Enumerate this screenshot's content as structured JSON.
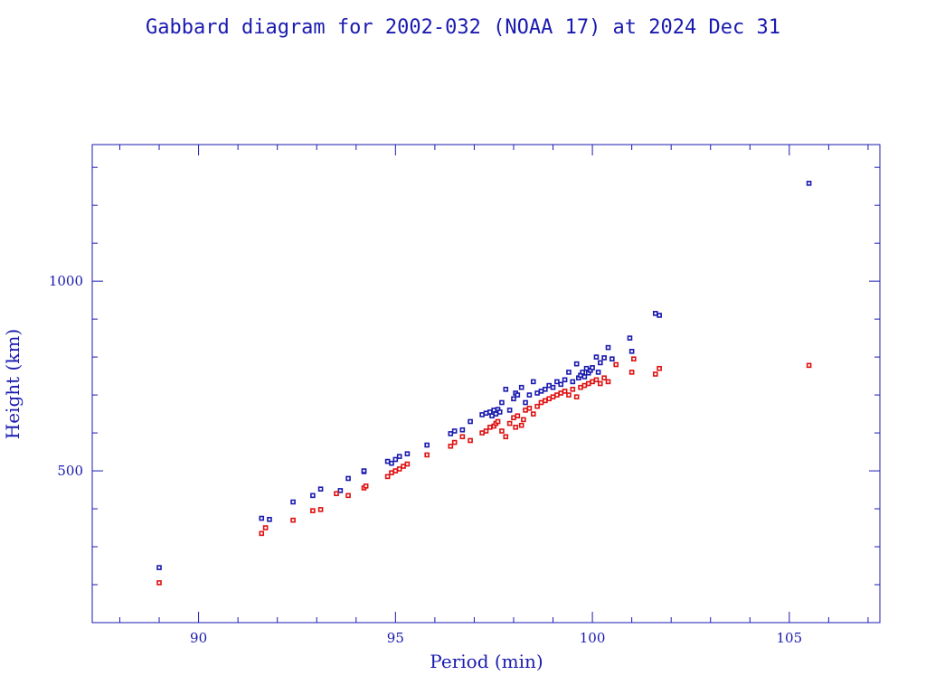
{
  "chart_data": {
    "type": "scatter",
    "title": "Gabbard diagram for 2002-032 (NOAA 17) at 2024 Dec 31",
    "xlabel": "Period (min)",
    "ylabel": "Height (km)",
    "xlim": [
      87.3,
      107.3
    ],
    "ylim": [
      100,
      1360
    ],
    "x_major_ticks": [
      90,
      95,
      100,
      105
    ],
    "y_major_ticks": [
      500,
      1000
    ],
    "grid": false,
    "colors": {
      "axis": "#1a1ab0",
      "apogee": "#1a1ab0",
      "perigee": "#e01010"
    },
    "series": [
      {
        "color": "#1a1ab0",
        "points": [
          [
            89.0,
            245
          ],
          [
            91.6,
            375
          ],
          [
            91.8,
            372
          ],
          [
            92.4,
            418
          ],
          [
            92.9,
            435
          ],
          [
            93.1,
            452
          ],
          [
            93.6,
            448
          ],
          [
            93.8,
            480
          ],
          [
            94.2,
            498
          ],
          [
            94.2,
            500
          ],
          [
            94.8,
            525
          ],
          [
            94.9,
            520
          ],
          [
            95.0,
            530
          ],
          [
            95.1,
            538
          ],
          [
            95.3,
            545
          ],
          [
            95.8,
            568
          ],
          [
            96.4,
            598
          ],
          [
            96.5,
            605
          ],
          [
            96.7,
            608
          ],
          [
            96.9,
            630
          ],
          [
            97.2,
            648
          ],
          [
            97.3,
            652
          ],
          [
            97.4,
            655
          ],
          [
            97.45,
            645
          ],
          [
            97.5,
            660
          ],
          [
            97.55,
            650
          ],
          [
            97.6,
            662
          ],
          [
            97.65,
            655
          ],
          [
            97.7,
            680
          ],
          [
            97.8,
            715
          ],
          [
            97.9,
            660
          ],
          [
            98.0,
            690
          ],
          [
            98.05,
            705
          ],
          [
            98.1,
            700
          ],
          [
            98.2,
            720
          ],
          [
            98.3,
            680
          ],
          [
            98.4,
            700
          ],
          [
            98.5,
            735
          ],
          [
            98.6,
            705
          ],
          [
            98.7,
            710
          ],
          [
            98.8,
            715
          ],
          [
            98.9,
            725
          ],
          [
            99.0,
            720
          ],
          [
            99.1,
            735
          ],
          [
            99.2,
            728
          ],
          [
            99.3,
            740
          ],
          [
            99.4,
            760
          ],
          [
            99.5,
            735
          ],
          [
            99.6,
            782
          ],
          [
            99.65,
            745
          ],
          [
            99.7,
            752
          ],
          [
            99.75,
            760
          ],
          [
            99.8,
            748
          ],
          [
            99.85,
            770
          ],
          [
            99.9,
            758
          ],
          [
            99.95,
            765
          ],
          [
            100.0,
            772
          ],
          [
            100.1,
            800
          ],
          [
            100.15,
            760
          ],
          [
            100.2,
            785
          ],
          [
            100.3,
            798
          ],
          [
            100.4,
            825
          ],
          [
            100.5,
            795
          ],
          [
            100.95,
            850
          ],
          [
            101.0,
            815
          ],
          [
            101.6,
            915
          ],
          [
            101.7,
            910
          ],
          [
            105.5,
            1258
          ]
        ]
      },
      {
        "color": "#e01010",
        "points": [
          [
            89.0,
            205
          ],
          [
            91.6,
            335
          ],
          [
            91.7,
            350
          ],
          [
            92.4,
            370
          ],
          [
            92.9,
            395
          ],
          [
            93.1,
            398
          ],
          [
            93.5,
            440
          ],
          [
            93.8,
            435
          ],
          [
            94.2,
            455
          ],
          [
            94.25,
            460
          ],
          [
            94.8,
            485
          ],
          [
            94.9,
            495
          ],
          [
            95.0,
            500
          ],
          [
            95.1,
            505
          ],
          [
            95.2,
            512
          ],
          [
            95.3,
            518
          ],
          [
            95.8,
            542
          ],
          [
            96.4,
            565
          ],
          [
            96.5,
            575
          ],
          [
            96.7,
            590
          ],
          [
            96.9,
            580
          ],
          [
            97.2,
            600
          ],
          [
            97.3,
            605
          ],
          [
            97.4,
            615
          ],
          [
            97.5,
            618
          ],
          [
            97.55,
            625
          ],
          [
            97.6,
            630
          ],
          [
            97.7,
            605
          ],
          [
            97.8,
            590
          ],
          [
            97.9,
            625
          ],
          [
            98.0,
            640
          ],
          [
            98.05,
            615
          ],
          [
            98.1,
            645
          ],
          [
            98.2,
            620
          ],
          [
            98.25,
            635
          ],
          [
            98.3,
            660
          ],
          [
            98.4,
            665
          ],
          [
            98.5,
            650
          ],
          [
            98.6,
            670
          ],
          [
            98.7,
            680
          ],
          [
            98.8,
            685
          ],
          [
            98.9,
            690
          ],
          [
            99.0,
            695
          ],
          [
            99.1,
            700
          ],
          [
            99.2,
            705
          ],
          [
            99.3,
            710
          ],
          [
            99.4,
            700
          ],
          [
            99.5,
            715
          ],
          [
            99.6,
            695
          ],
          [
            99.7,
            720
          ],
          [
            99.8,
            725
          ],
          [
            99.9,
            730
          ],
          [
            100.0,
            735
          ],
          [
            100.1,
            740
          ],
          [
            100.2,
            730
          ],
          [
            100.3,
            745
          ],
          [
            100.4,
            735
          ],
          [
            100.6,
            780
          ],
          [
            101.0,
            760
          ],
          [
            101.05,
            795
          ],
          [
            101.6,
            755
          ],
          [
            101.7,
            770
          ],
          [
            105.5,
            778
          ]
        ]
      }
    ]
  }
}
